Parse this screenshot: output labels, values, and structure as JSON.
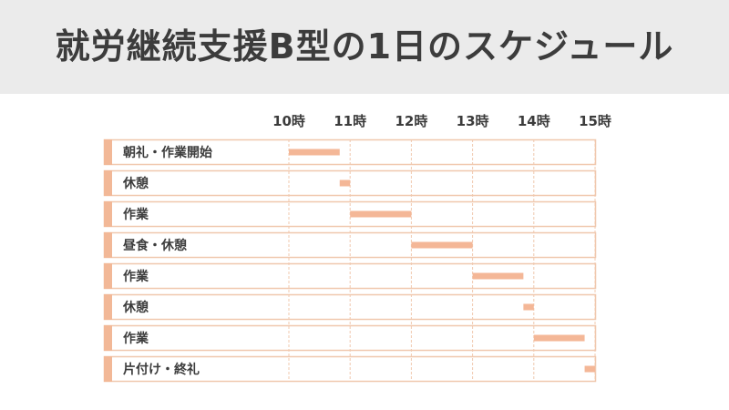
{
  "header": {
    "title": "就労継続支援B型の1日のスケジュール"
  },
  "colors": {
    "bar": "#f4b797",
    "border": "#f0c8ae",
    "accent": "#f2b897",
    "grid": "#f0c8ae",
    "header_bg": "#ebebeb",
    "text": "#3c3c3c"
  },
  "chart_data": {
    "type": "bar",
    "orientation": "horizontal-gantt",
    "title": "就労継続支援B型の1日のスケジュール",
    "x_ticks": [
      "10時",
      "11時",
      "12時",
      "13時",
      "14時",
      "15時"
    ],
    "xlim": [
      10,
      15
    ],
    "unit": "hour",
    "grid": true,
    "tasks": [
      {
        "label": "朝礼・作業開始",
        "start": 10.0,
        "end": 10.83
      },
      {
        "label": "休憩",
        "start": 10.83,
        "end": 11.0
      },
      {
        "label": "作業",
        "start": 11.0,
        "end": 12.0
      },
      {
        "label": "昼食・休憩",
        "start": 12.0,
        "end": 13.0
      },
      {
        "label": "作業",
        "start": 13.0,
        "end": 13.83
      },
      {
        "label": "休憩",
        "start": 13.83,
        "end": 14.0
      },
      {
        "label": "作業",
        "start": 14.0,
        "end": 14.83
      },
      {
        "label": "片付け・終礼",
        "start": 14.83,
        "end": 15.0
      }
    ]
  }
}
